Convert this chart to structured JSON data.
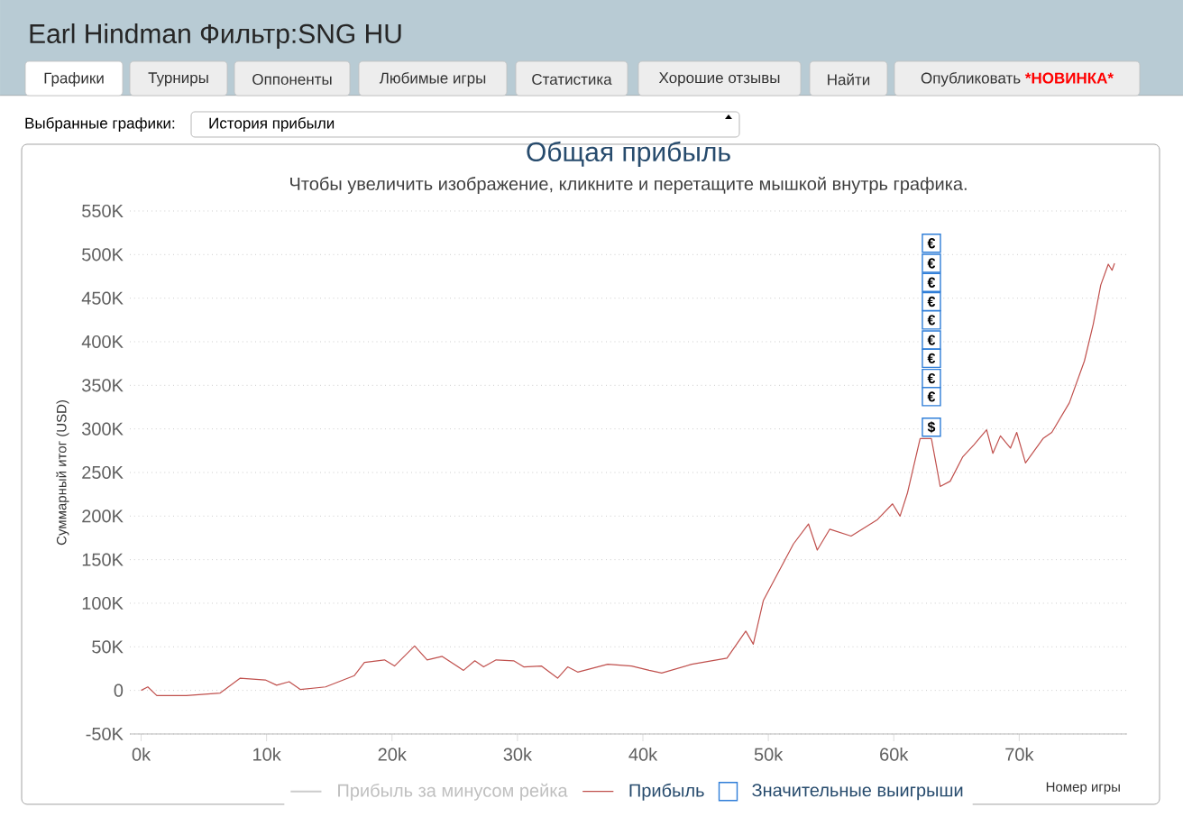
{
  "chart_data": {
    "type": "line",
    "title": "Общая прибыль",
    "subtitle": "Чтобы увеличить изображение, кликните и перетащите мышкой внутрь графика.",
    "xlabel": "Номер игры",
    "ylabel": "Суммарный итог (USD)",
    "annotations": [
      "Earl Hindman Фильтр:SNG HU",
      "Графики",
      "Турниры",
      "Оппоненты",
      "Любимые игры",
      "Статистика",
      "Хорошие отзывы",
      "Найти",
      "Опубликовать",
      "*",
      "НОВИНКА",
      "*",
      "Выбранные графики:",
      "История прибыли",
      "Прибыль за минусом рейка"
    ],
    "xlim": [
      -900,
      78600
    ],
    "ylim": [
      -50000,
      550000
    ],
    "xticks": [
      {
        "value": 0,
        "label": "0k"
      },
      {
        "value": 10000,
        "label": "10k"
      },
      {
        "value": 20000,
        "label": "20k"
      },
      {
        "value": 30000,
        "label": "30k"
      },
      {
        "value": 40000,
        "label": "40k"
      },
      {
        "value": 50000,
        "label": "50k"
      },
      {
        "value": 60000,
        "label": "60k"
      },
      {
        "value": 70000,
        "label": "70k"
      }
    ],
    "yticks": [
      {
        "value": -50000,
        "label": "-50K"
      },
      0,
      {
        "value": 50000,
        "label": "50K"
      },
      {
        "value": 100000,
        "label": "100K"
      },
      {
        "value": 150000,
        "label": "150K"
      },
      {
        "value": 200000,
        "label": "200K"
      },
      {
        "value": 250000,
        "label": "250K"
      },
      {
        "value": 300000,
        "label": "300K"
      },
      {
        "value": 350000,
        "label": "350K"
      },
      {
        "value": 400000,
        "label": "400K"
      },
      {
        "value": 450000,
        "label": "450K"
      },
      {
        "value": 500000,
        "label": "500K"
      },
      {
        "value": 550000,
        "label": "550K"
      }
    ],
    "grid": "y",
    "legend": "bottom",
    "series": [
      {
        "name": "Прибыль",
        "color": "#c0504d",
        "x": [
          0,
          530,
          1250,
          3600,
          6300,
          7900,
          9900,
          10800,
          11800,
          12700,
          14700,
          17000,
          17800,
          19400,
          20200,
          21800,
          22800,
          24000,
          25700,
          26600,
          27300,
          28300,
          29700,
          30500,
          31900,
          33200,
          34000,
          34800,
          37200,
          39100,
          40500,
          41500,
          43900,
          46700,
          48200,
          48800,
          49600,
          52000,
          53200,
          53900,
          54900,
          56600,
          58700,
          59900,
          60500,
          61100,
          62100,
          63000,
          63700,
          64500,
          65500,
          66400,
          67400,
          67900,
          68500,
          69300,
          69800,
          70500,
          71900,
          72600,
          74000,
          75200,
          75900,
          76500,
          77100,
          77400,
          77600
        ],
        "values": [
          0,
          4000,
          -6000,
          -6000,
          -3000,
          14000,
          12000,
          6000,
          10000,
          1000,
          4000,
          17000,
          32000,
          35000,
          28000,
          51000,
          35000,
          39000,
          23000,
          34000,
          27000,
          35000,
          34000,
          27000,
          28000,
          14000,
          27000,
          21000,
          30000,
          28000,
          23000,
          20000,
          30000,
          37000,
          68000,
          53000,
          103000,
          168000,
          191000,
          161000,
          185000,
          177000,
          196000,
          214000,
          200000,
          227000,
          289000,
          289000,
          234000,
          240000,
          268000,
          282000,
          299000,
          272000,
          292000,
          278000,
          296000,
          261000,
          289000,
          296000,
          330000,
          378000,
          420000,
          465000,
          489000,
          482000,
          490000
        ]
      },
      {
        "name": "Значительные выигрыши",
        "type": "scatter",
        "marker": "square",
        "color": "#2f7ed8",
        "x": [
          63000,
          63000,
          63000,
          63000,
          63000,
          63000,
          63000,
          63000,
          63000,
          63000
        ],
        "values": [
          513000,
          490000,
          468000,
          446000,
          425000,
          402000,
          381000,
          358000,
          337000,
          302000
        ],
        "value_labels": [
          "€",
          "€",
          "€",
          "€",
          "€",
          "€",
          "€",
          "€",
          "€",
          "$"
        ]
      }
    ]
  }
}
